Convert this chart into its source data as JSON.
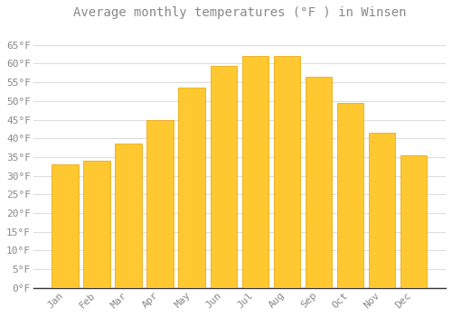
{
  "title": "Average monthly temperatures (°F ) in Winsen",
  "months": [
    "Jan",
    "Feb",
    "Mar",
    "Apr",
    "May",
    "Jun",
    "Jul",
    "Aug",
    "Sep",
    "Oct",
    "Nov",
    "Dec"
  ],
  "values": [
    33,
    34,
    38.5,
    45,
    53.5,
    59.5,
    62,
    62,
    56.5,
    49.5,
    41.5,
    35.5
  ],
  "bar_color": "#FFC830",
  "bar_edge_color": "#E8A000",
  "background_color": "#FFFFFF",
  "grid_color": "#DDDDDD",
  "text_color": "#888888",
  "axis_color": "#333333",
  "ylim": [
    0,
    70
  ],
  "yticks": [
    0,
    5,
    10,
    15,
    20,
    25,
    30,
    35,
    40,
    45,
    50,
    55,
    60,
    65
  ],
  "title_fontsize": 10,
  "tick_fontsize": 8
}
